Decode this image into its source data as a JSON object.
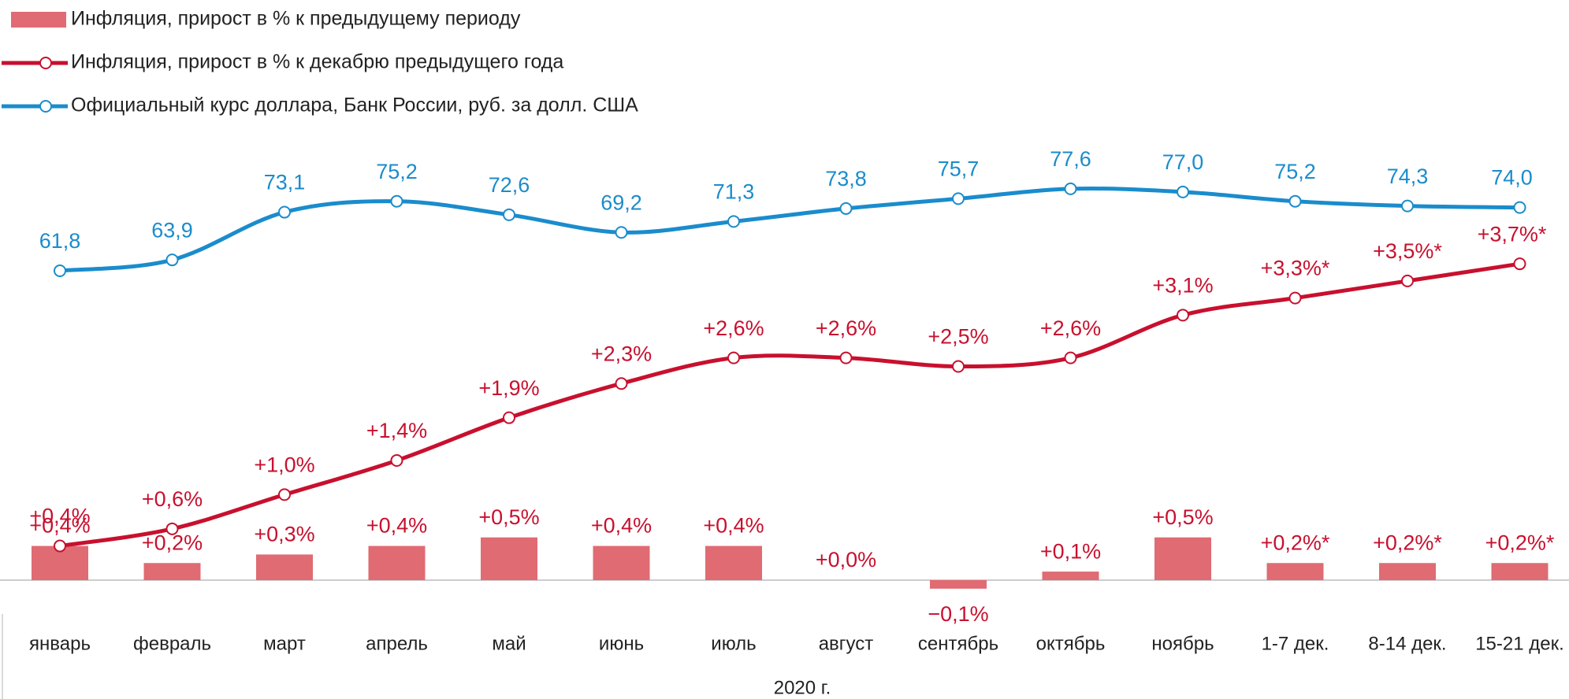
{
  "chart_data": {
    "type": "bar",
    "categories": [
      "январь",
      "февраль",
      "март",
      "апрель",
      "май",
      "июнь",
      "июль",
      "август",
      "сентябрь",
      "октябрь",
      "ноябрь",
      "1-7 дек.",
      "8-14 дек.",
      "15-21 дек."
    ],
    "x_label": "2020 г.",
    "series": [
      {
        "name": "Инфляция, прирост в % к предыдущему периоду",
        "type": "bar",
        "color": "#e06b72",
        "values": [
          0.4,
          0.2,
          0.3,
          0.4,
          0.5,
          0.4,
          0.4,
          0.0,
          -0.1,
          0.1,
          0.5,
          0.2,
          0.2,
          0.2
        ],
        "value_labels": [
          "+0,4%",
          "+0,2%",
          "+0,3%",
          "+0,4%",
          "+0,5%",
          "+0,4%",
          "+0,4%",
          "+0,0%",
          "−0,1%",
          "+0,1%",
          "+0,5%",
          "+0,2%*",
          "+0,2%*",
          "+0,2%*"
        ]
      },
      {
        "name": "Инфляция, прирост в % к декабрю предыдущего года",
        "type": "line",
        "color": "#c8102e",
        "values": [
          0.4,
          0.6,
          1.0,
          1.4,
          1.9,
          2.3,
          2.6,
          2.6,
          2.5,
          2.6,
          3.1,
          3.3,
          3.5,
          3.7
        ],
        "value_labels": [
          "+0,4%",
          "+0,6%",
          "+1,0%",
          "+1,4%",
          "+1,9%",
          "+2,3%",
          "+2,6%",
          "+2,6%",
          "+2,5%",
          "+2,6%",
          "+3,1%",
          "+3,3%*",
          "+3,5%*",
          "+3,7%*"
        ]
      },
      {
        "name": "Официальный курс доллара, Банк России, руб. за долл. США",
        "type": "line",
        "axis": "y2",
        "color": "#1a8ccc",
        "values": [
          61.8,
          63.9,
          73.1,
          75.2,
          72.6,
          69.2,
          71.3,
          73.8,
          75.7,
          77.6,
          77.0,
          75.2,
          74.3,
          74.0
        ],
        "value_labels": [
          "61,8",
          "63,9",
          "73,1",
          "75,2",
          "72,6",
          "69,2",
          "71,3",
          "73,8",
          "75,7",
          "77,6",
          "77,0",
          "75,2",
          "74,3",
          "74,0"
        ]
      }
    ]
  }
}
